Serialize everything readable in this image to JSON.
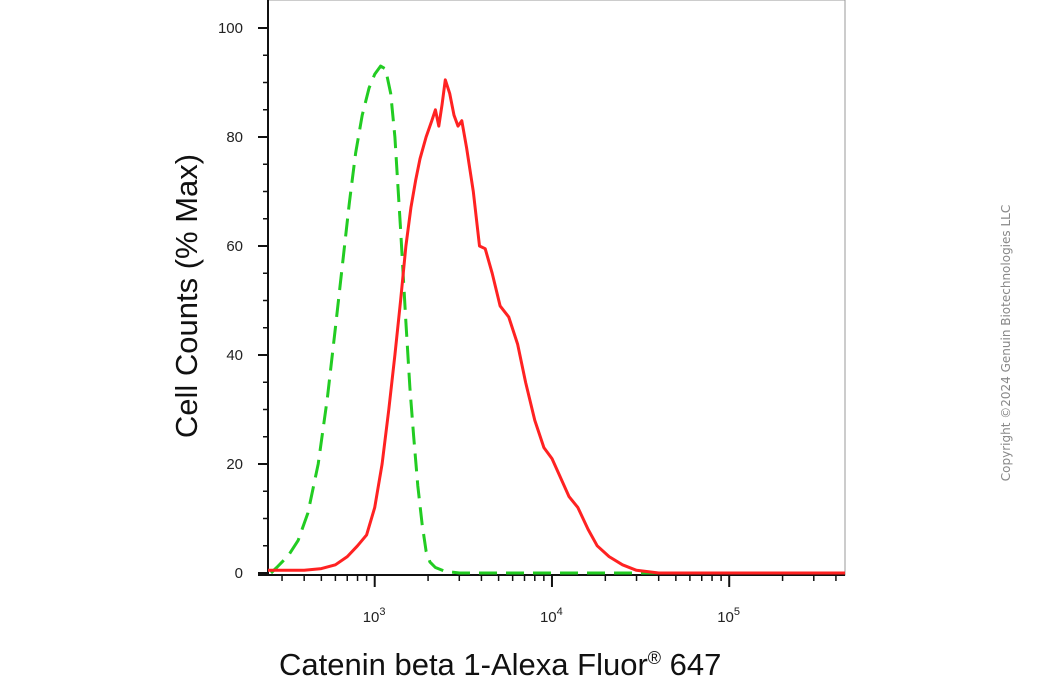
{
  "chart_data": {
    "type": "line",
    "title": "",
    "xlabel": "Catenin beta 1-Alexa Fluor",
    "xlabel_superscript": "®",
    "xlabel_suffix": " 647",
    "ylabel": "Cell Counts (% Max)",
    "xscale": "log",
    "xlim": [
      250,
      450000
    ],
    "ylim": [
      0,
      100
    ],
    "yticks": [
      0,
      20,
      40,
      60,
      80,
      100
    ],
    "xticks": [
      {
        "base": "10",
        "exp": "3",
        "value": 1000
      },
      {
        "base": "10",
        "exp": "4",
        "value": 10000
      },
      {
        "base": "10",
        "exp": "5",
        "value": 100000
      }
    ],
    "grid": false,
    "series": [
      {
        "color": "#22cc22",
        "style": "dashed",
        "points": [
          [
            260,
            0
          ],
          [
            280,
            1
          ],
          [
            300,
            2
          ],
          [
            330,
            3.5
          ],
          [
            370,
            6
          ],
          [
            420,
            11
          ],
          [
            480,
            20
          ],
          [
            540,
            32
          ],
          [
            600,
            45
          ],
          [
            660,
            57
          ],
          [
            720,
            68
          ],
          [
            780,
            77
          ],
          [
            850,
            84
          ],
          [
            930,
            89
          ],
          [
            1000,
            91.5
          ],
          [
            1080,
            93
          ],
          [
            1150,
            92.5
          ],
          [
            1230,
            88
          ],
          [
            1300,
            80
          ],
          [
            1400,
            63
          ],
          [
            1500,
            46
          ],
          [
            1580,
            34
          ],
          [
            1660,
            25
          ],
          [
            1750,
            16
          ],
          [
            1850,
            9
          ],
          [
            1950,
            4
          ],
          [
            2050,
            2
          ],
          [
            2200,
            1
          ],
          [
            2500,
            0.3
          ],
          [
            3000,
            0
          ],
          [
            30000,
            0
          ],
          [
            450000,
            0
          ]
        ]
      },
      {
        "color": "#ff2222",
        "style": "solid",
        "points": [
          [
            250,
            0.5
          ],
          [
            400,
            0.5
          ],
          [
            500,
            0.8
          ],
          [
            600,
            1.5
          ],
          [
            700,
            3
          ],
          [
            800,
            5
          ],
          [
            900,
            7
          ],
          [
            1000,
            12
          ],
          [
            1100,
            20
          ],
          [
            1200,
            30
          ],
          [
            1300,
            40
          ],
          [
            1400,
            50
          ],
          [
            1500,
            60
          ],
          [
            1600,
            67
          ],
          [
            1700,
            72
          ],
          [
            1800,
            76
          ],
          [
            1950,
            80
          ],
          [
            2100,
            83
          ],
          [
            2200,
            85
          ],
          [
            2300,
            82
          ],
          [
            2400,
            86
          ],
          [
            2500,
            90.5
          ],
          [
            2650,
            88
          ],
          [
            2800,
            84
          ],
          [
            2950,
            82
          ],
          [
            3100,
            83
          ],
          [
            3300,
            78
          ],
          [
            3600,
            70
          ],
          [
            3900,
            60
          ],
          [
            4200,
            59.5
          ],
          [
            4600,
            55
          ],
          [
            5100,
            49
          ],
          [
            5700,
            47
          ],
          [
            6400,
            42
          ],
          [
            7100,
            35
          ],
          [
            8000,
            28
          ],
          [
            9000,
            23
          ],
          [
            10000,
            21
          ],
          [
            11000,
            18
          ],
          [
            12500,
            14
          ],
          [
            14000,
            12
          ],
          [
            16000,
            8
          ],
          [
            18000,
            5
          ],
          [
            21000,
            3
          ],
          [
            25000,
            1.5
          ],
          [
            30000,
            0.5
          ],
          [
            40000,
            0
          ],
          [
            450000,
            0
          ]
        ]
      }
    ]
  },
  "copyright": "Copyright ©2024 Genuin Biotechnologies LLC"
}
